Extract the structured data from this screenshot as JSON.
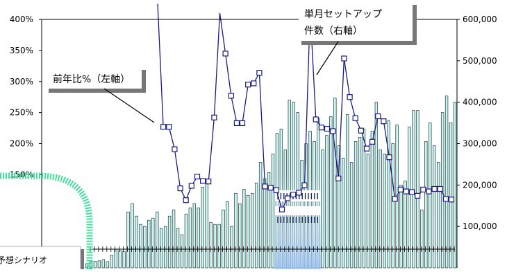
{
  "chart_data": {
    "type": "bar",
    "title": "",
    "ylim_left": [
      0,
      4.0
    ],
    "ylim_right": [
      0,
      600000
    ],
    "left_ticks": [
      "150%",
      "200%",
      "250%",
      "300%",
      "350%",
      "400%"
    ],
    "left_tick_values": [
      1.5,
      2.0,
      2.5,
      3.0,
      3.5,
      4.0
    ],
    "right_ticks": [
      "100,000",
      "200,000",
      "300,000",
      "400,000",
      "500,000",
      "600,000"
    ],
    "right_tick_values": [
      100000,
      200000,
      300000,
      400000,
      500000,
      600000
    ],
    "grid": false,
    "series": [
      {
        "axis": "right",
        "kind": "bar",
        "values": [
          10000,
          15000,
          16000,
          17000,
          20000,
          15000,
          30000,
          45000,
          42000,
          40000,
          135000,
          155000,
          125000,
          105000,
          100000,
          115000,
          120000,
          135000,
          95000,
          100000,
          125000,
          140000,
          95000,
          80000,
          130000,
          145000,
          155000,
          145000,
          195000,
          210000,
          110000,
          105000,
          105000,
          140000,
          160000,
          100000,
          180000,
          155000,
          190000,
          175000,
          180000,
          205000,
          255000,
          215000,
          230000,
          275000,
          325000,
          335000,
          285000,
          405000,
          400000,
          375000,
          260000,
          300000,
          330000,
          305000,
          360000,
          285000,
          320000,
          365000,
          410000,
          295000,
          265000,
          370000,
          255000,
          305000,
          315000,
          335000,
          275000,
          330000,
          400000,
          285000,
          275000,
          355000,
          300000,
          345000,
          200000,
          210000,
          340000,
          380000,
          380000,
          140000,
          305000,
          350000,
          295000,
          255000,
          375000,
          415000,
          350000,
          400000
        ]
      },
      {
        "axis": "left",
        "kind": "line",
        "values": [
          null,
          null,
          null,
          null,
          null,
          null,
          null,
          null,
          null,
          null,
          null,
          null,
          null,
          null,
          null,
          4.25,
          2.27,
          2.27,
          1.91,
          1.28,
          1.09,
          1.32,
          1.47,
          1.4,
          1.39,
          2.42,
          4.1,
          3.45,
          2.77,
          2.33,
          2.33,
          2.95,
          2.97,
          3.14,
          1.31,
          1.29,
          1.25,
          0.94,
          1.12,
          1.18,
          1.21,
          1.33,
          4.14,
          2.39,
          2.26,
          2.24,
          2.2,
          1.44,
          3.37,
          2.75,
          2.41,
          2.21,
          1.92,
          2.03,
          2.44,
          2.36,
          1.78,
          1.11,
          1.26,
          1.23,
          1.22,
          1.16,
          1.26,
          1.23,
          1.27,
          1.27,
          1.11,
          1.1
        ]
      }
    ],
    "annotations": {
      "right_label": [
        "単月セットアップ",
        "件数（右軸）"
      ],
      "left_label": "前年比%（左軸）",
      "scenario_label": "予想シナリオ"
    }
  },
  "colors": {
    "bar_fill": "#ccf4f0",
    "bar_stroke": "#1a3a3a",
    "line": "#1a1a80",
    "marker_fill": "#ffffff",
    "accent_green": "#40e09a",
    "highlight": "#c8dcff"
  }
}
